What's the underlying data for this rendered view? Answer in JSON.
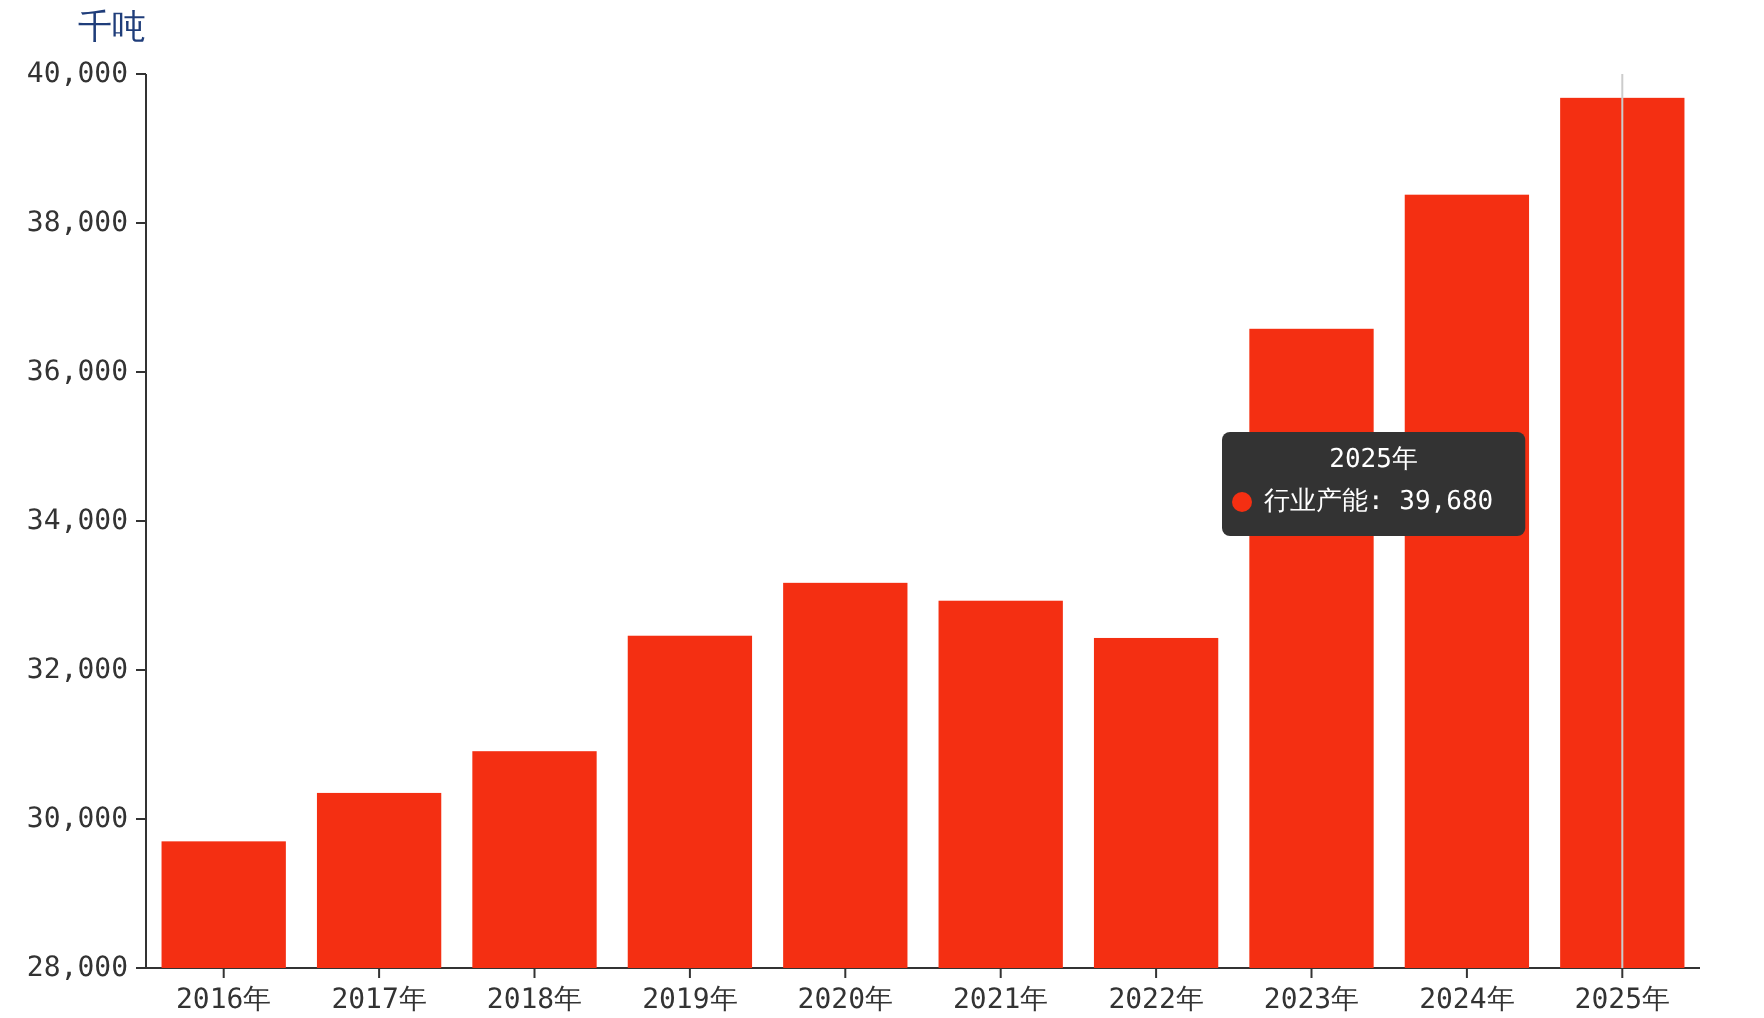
{
  "chart_data": {
    "type": "bar",
    "ylabel": "千吨",
    "categories": [
      "2016年",
      "2017年",
      "2018年",
      "2019年",
      "2020年",
      "2021年",
      "2022年",
      "2023年",
      "2024年",
      "2025年"
    ],
    "values": [
      29700,
      30350,
      30910,
      32460,
      33170,
      32930,
      32430,
      36580,
      38380,
      39680
    ],
    "color": "#f42f12",
    "ylim": [
      28000,
      40000
    ],
    "yticks": [
      {
        "value": 28000,
        "label": "28,000"
      },
      {
        "value": 30000,
        "label": "30,000"
      },
      {
        "value": 32000,
        "label": "32,000"
      },
      {
        "value": 34000,
        "label": "34,000"
      },
      {
        "value": 36000,
        "label": "36,000"
      },
      {
        "value": 38000,
        "label": "38,000"
      },
      {
        "value": 40000,
        "label": "40,000"
      }
    ],
    "ref_lines": [
      {
        "axis": "x",
        "value": "2025年",
        "color": "#cccccc"
      }
    ],
    "annotations": [
      "2025年",
      "行业产能: 39,680"
    ]
  }
}
